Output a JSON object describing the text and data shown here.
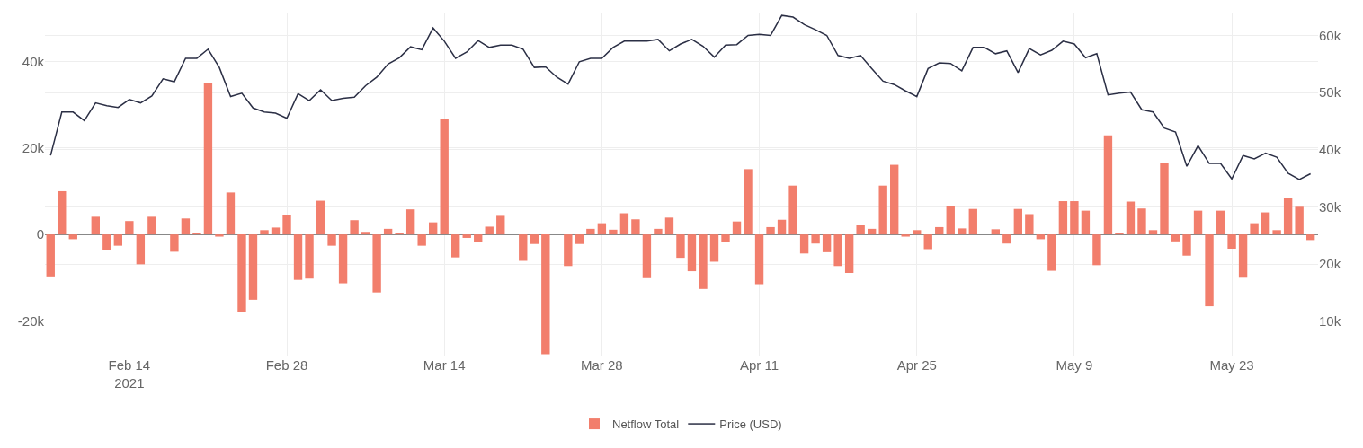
{
  "chart_data": {
    "type": "bar",
    "x": [
      "2021-02-07",
      "2021-02-08",
      "2021-02-09",
      "2021-02-10",
      "2021-02-11",
      "2021-02-12",
      "2021-02-13",
      "2021-02-14",
      "2021-02-15",
      "2021-02-16",
      "2021-02-17",
      "2021-02-18",
      "2021-02-19",
      "2021-02-20",
      "2021-02-21",
      "2021-02-22",
      "2021-02-23",
      "2021-02-24",
      "2021-02-25",
      "2021-02-26",
      "2021-02-27",
      "2021-02-28",
      "2021-03-01",
      "2021-03-02",
      "2021-03-03",
      "2021-03-04",
      "2021-03-05",
      "2021-03-06",
      "2021-03-07",
      "2021-03-08",
      "2021-03-09",
      "2021-03-10",
      "2021-03-11",
      "2021-03-12",
      "2021-03-13",
      "2021-03-14",
      "2021-03-15",
      "2021-03-16",
      "2021-03-17",
      "2021-03-18",
      "2021-03-19",
      "2021-03-20",
      "2021-03-21",
      "2021-03-22",
      "2021-03-23",
      "2021-03-24",
      "2021-03-25",
      "2021-03-26",
      "2021-03-27",
      "2021-03-28",
      "2021-03-29",
      "2021-03-30",
      "2021-03-31",
      "2021-04-01",
      "2021-04-02",
      "2021-04-03",
      "2021-04-04",
      "2021-04-05",
      "2021-04-06",
      "2021-04-07",
      "2021-04-08",
      "2021-04-09",
      "2021-04-10",
      "2021-04-11",
      "2021-04-12",
      "2021-04-13",
      "2021-04-14",
      "2021-04-15",
      "2021-04-16",
      "2021-04-17",
      "2021-04-18",
      "2021-04-19",
      "2021-04-20",
      "2021-04-21",
      "2021-04-22",
      "2021-04-23",
      "2021-04-24",
      "2021-04-25",
      "2021-04-26",
      "2021-04-27",
      "2021-04-28",
      "2021-04-29",
      "2021-04-30",
      "2021-05-01",
      "2021-05-02",
      "2021-05-03",
      "2021-05-04",
      "2021-05-05",
      "2021-05-06",
      "2021-05-07",
      "2021-05-08",
      "2021-05-09",
      "2021-05-10",
      "2021-05-11",
      "2021-05-12",
      "2021-05-13",
      "2021-05-14",
      "2021-05-15",
      "2021-05-16",
      "2021-05-17",
      "2021-05-18",
      "2021-05-19",
      "2021-05-20",
      "2021-05-21",
      "2021-05-22",
      "2021-05-23",
      "2021-05-24",
      "2021-05-25",
      "2021-05-26",
      "2021-05-27",
      "2021-05-28",
      "2021-05-29",
      "2021-05-30"
    ],
    "series": [
      {
        "name": "Netflow Total",
        "color": "#f27e6c",
        "values": [
          -9700,
          10000,
          -1100,
          0,
          4100,
          -3500,
          -2600,
          3100,
          -6900,
          4100,
          0,
          -4000,
          3700,
          300,
          35000,
          -500,
          9700,
          -17900,
          -15100,
          1000,
          1600,
          4500,
          -10500,
          -10200,
          7800,
          -2600,
          -11300,
          3300,
          600,
          -13400,
          1300,
          300,
          5800,
          -2600,
          2800,
          26700,
          -5300,
          -800,
          -1800,
          1800,
          4300,
          0,
          -6100,
          -2200,
          -27700,
          0,
          -7300,
          -2200,
          1300,
          2600,
          1100,
          4900,
          3500,
          -10100,
          1300,
          3900,
          -5400,
          -8500,
          -12600,
          -6300,
          -1800,
          3000,
          15100,
          -11500,
          1700,
          3400,
          11300,
          -4400,
          -2100,
          -4100,
          -7300,
          -8900,
          2100,
          1300,
          11300,
          16100,
          -500,
          1000,
          -3400,
          1700,
          6500,
          1400,
          5900,
          0,
          1200,
          -2100,
          5900,
          4700,
          -1100,
          -8400,
          7700,
          7700,
          5500,
          -7100,
          22900,
          300,
          7600,
          6000,
          1000,
          16600,
          -1600,
          -4900,
          5500,
          -16600,
          5500,
          -3300,
          -10000,
          2600,
          5100,
          1000,
          8500,
          6400,
          -1300
        ]
      },
      {
        "name": "Price (USD)",
        "type": "line",
        "axis": "y2",
        "color": "#2b2f45",
        "values": [
          39000,
          46600,
          46600,
          45100,
          48200,
          47700,
          47400,
          48800,
          48200,
          49400,
          52400,
          51900,
          56000,
          56000,
          57600,
          54400,
          49300,
          49900,
          47300,
          46600,
          46400,
          45500,
          49800,
          48600,
          50500,
          48600,
          49000,
          49200,
          51200,
          52700,
          55000,
          56100,
          58000,
          57500,
          61300,
          59000,
          56000,
          57100,
          59100,
          57900,
          58300,
          58300,
          57600,
          54400,
          54500,
          52700,
          51500,
          55400,
          56000,
          56000,
          57900,
          59000,
          59000,
          59000,
          59300,
          57300,
          58500,
          59300,
          58100,
          56200,
          58300,
          58400,
          60000,
          60200,
          60000,
          63500,
          63200,
          61900,
          61000,
          60000,
          56500,
          56000,
          56500,
          54200,
          52000,
          51400,
          50300,
          49300,
          54200,
          55200,
          55100,
          53800,
          57900,
          57900,
          56800,
          57300,
          53500,
          57700,
          56600,
          57400,
          59000,
          58500,
          56100,
          56800,
          49600,
          49900,
          50100,
          47000,
          46600,
          43800,
          43100,
          37100,
          40700,
          37600,
          37600,
          34900,
          39000,
          38400,
          39400,
          38700,
          35900,
          34800,
          35800
        ]
      }
    ],
    "xlim": [
      "2021-02-06T12:00",
      "2021-05-30T16:00"
    ],
    "xticks": [
      {
        "value": "2021-02-14",
        "label": "Feb 14\n2021"
      },
      {
        "value": "2021-02-28",
        "label": "Feb 28"
      },
      {
        "value": "2021-03-14",
        "label": "Mar 14"
      },
      {
        "value": "2021-03-28",
        "label": "Mar 28"
      },
      {
        "value": "2021-04-11",
        "label": "Apr 11"
      },
      {
        "value": "2021-04-25",
        "label": "Apr 25"
      },
      {
        "value": "2021-05-09",
        "label": "May 9"
      },
      {
        "value": "2021-05-23",
        "label": "May 23"
      }
    ],
    "ylim": [
      -28000,
      51300
    ],
    "yticks": [
      {
        "value": -20000,
        "label": "-20k"
      },
      {
        "value": 0,
        "label": "0"
      },
      {
        "value": 20000,
        "label": "20k"
      },
      {
        "value": 40000,
        "label": "40k"
      }
    ],
    "y2lim": [
      4000,
      64000
    ],
    "y2ticks": [
      {
        "value": 10000,
        "label": "10k"
      },
      {
        "value": 20000,
        "label": "20k"
      },
      {
        "value": 30000,
        "label": "30k"
      },
      {
        "value": 40000,
        "label": "40k"
      },
      {
        "value": 50000,
        "label": "50k"
      },
      {
        "value": 60000,
        "label": "60k"
      }
    ],
    "grid": true,
    "legend": "bottom",
    "line_style": "solid",
    "marker": "none"
  }
}
